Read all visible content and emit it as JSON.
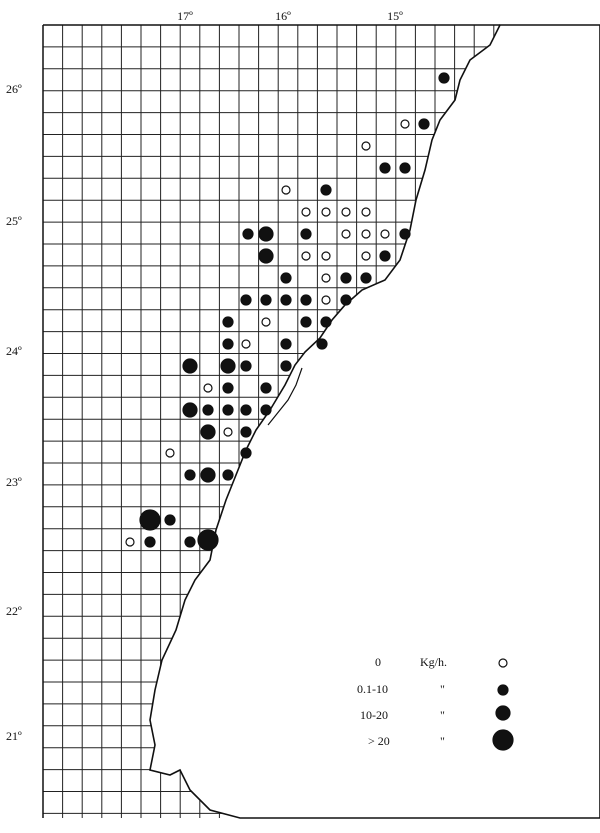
{
  "longitude_labels": [
    "17º",
    "16º",
    "15º"
  ],
  "latitude_labels": [
    "26º",
    "25º",
    "24º",
    "23º",
    "22º",
    "21º"
  ],
  "legend": [
    {
      "label": "0",
      "unit": "Kg/h."
    },
    {
      "label": "0.1-10",
      "unit": "\""
    },
    {
      "label": "10-20",
      "unit": "\""
    },
    {
      "label": "> 20",
      "unit": "\""
    }
  ]
}
